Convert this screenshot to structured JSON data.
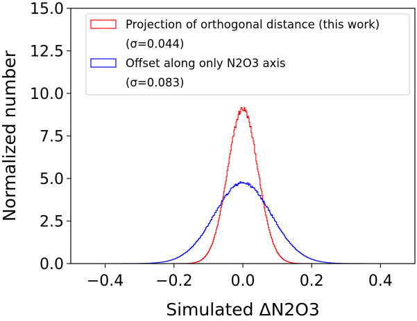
{
  "chart_data": {
    "type": "line",
    "subtype": "step-histogram",
    "title": "",
    "xlabel": "Simulated ΔN2O3",
    "ylabel": "Normalized number",
    "xlim": [
      -0.5,
      0.5
    ],
    "ylim": [
      0,
      15
    ],
    "xticks": [
      -0.4,
      -0.2,
      0.0,
      0.2,
      0.4
    ],
    "xtick_labels": [
      "−0.4",
      "−0.2",
      "0.0",
      "0.2",
      "0.4"
    ],
    "yticks": [
      0,
      2.5,
      5,
      7.5,
      10,
      12.5,
      15
    ],
    "ytick_labels": [
      "0.0",
      "2.5",
      "5.0",
      "7.5",
      "10.0",
      "12.5",
      "15.0"
    ],
    "grid": false,
    "legend_position": "top-right",
    "series": [
      {
        "name": "Projection of orthogonal distance (this work)",
        "sigma_label": "(σ=0.044)",
        "color": "#ff0000",
        "sigma": 0.044,
        "mean": 0.0,
        "x_range": [
          -0.2,
          0.2
        ],
        "x": [
          -0.2,
          -0.175,
          -0.15,
          -0.125,
          -0.1,
          -0.075,
          -0.05,
          -0.025,
          0.0,
          0.025,
          0.05,
          0.075,
          0.1,
          0.125,
          0.15,
          0.175,
          0.2
        ],
        "values": [
          0.03,
          0.03,
          0.07,
          0.16,
          0.6,
          1.5,
          4.1,
          7.0,
          9.1,
          7.0,
          4.1,
          1.5,
          0.6,
          0.16,
          0.07,
          0.03,
          0.03
        ]
      },
      {
        "name": "Offset along only N2O3 axis",
        "sigma_label": "(σ=0.083)",
        "color": "#0000ff",
        "sigma": 0.083,
        "mean": 0.0,
        "x_range": [
          -0.4,
          0.42
        ],
        "x": [
          -0.4,
          -0.35,
          -0.3,
          -0.25,
          -0.2,
          -0.15,
          -0.1,
          -0.05,
          0.0,
          0.05,
          0.1,
          0.15,
          0.2,
          0.25,
          0.3,
          0.35,
          0.4
        ],
        "values": [
          0.01,
          0.05,
          0.07,
          0.2,
          0.55,
          1.1,
          2.3,
          3.6,
          4.75,
          3.6,
          2.3,
          1.1,
          0.55,
          0.2,
          0.07,
          0.05,
          0.01
        ]
      }
    ]
  }
}
